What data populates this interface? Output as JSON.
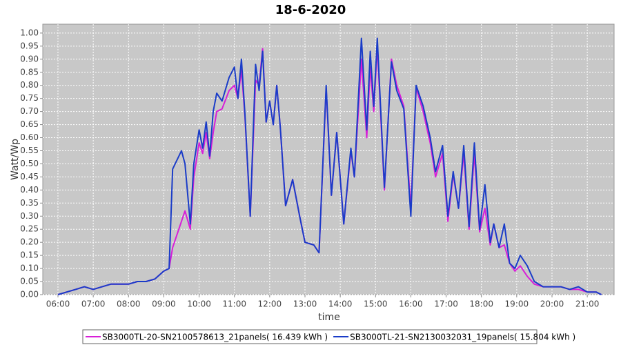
{
  "chart_data": {
    "type": "line",
    "title": "18-6-2020",
    "x_label": "time",
    "y_label": "Watt/Wp",
    "x": [
      6.0,
      6.25,
      6.5,
      6.75,
      7.0,
      7.25,
      7.5,
      7.75,
      8.0,
      8.25,
      8.5,
      8.75,
      9.0,
      9.15,
      9.25,
      9.5,
      9.6,
      9.75,
      9.85,
      10.0,
      10.1,
      10.2,
      10.3,
      10.4,
      10.5,
      10.65,
      10.85,
      11.0,
      11.1,
      11.2,
      11.3,
      11.45,
      11.6,
      11.7,
      11.8,
      11.9,
      12.0,
      12.1,
      12.2,
      12.3,
      12.45,
      12.65,
      12.85,
      13.0,
      13.25,
      13.4,
      13.6,
      13.75,
      13.9,
      14.1,
      14.3,
      14.4,
      14.6,
      14.75,
      14.85,
      14.95,
      15.05,
      15.25,
      15.45,
      15.6,
      15.8,
      16.0,
      16.15,
      16.35,
      16.55,
      16.7,
      16.9,
      17.05,
      17.2,
      17.35,
      17.5,
      17.65,
      17.8,
      17.95,
      18.1,
      18.25,
      18.35,
      18.5,
      18.65,
      18.8,
      18.95,
      19.1,
      19.3,
      19.5,
      19.75,
      20.0,
      20.25,
      20.5,
      20.75,
      21.0,
      21.25,
      21.4
    ],
    "series": [
      {
        "name": "SB3000TL-20-SN2100578613_21panels( 16.439 kWh )",
        "color": "#d81ed8",
        "values": [
          0.0,
          0.01,
          0.02,
          0.03,
          0.02,
          0.03,
          0.04,
          0.04,
          0.04,
          0.05,
          0.05,
          0.06,
          0.09,
          0.1,
          0.18,
          0.28,
          0.32,
          0.25,
          0.45,
          0.58,
          0.54,
          0.62,
          0.52,
          0.62,
          0.7,
          0.71,
          0.78,
          0.8,
          0.75,
          0.86,
          0.68,
          0.3,
          0.82,
          0.8,
          0.94,
          0.66,
          0.74,
          0.65,
          0.8,
          0.64,
          0.34,
          0.44,
          0.3,
          0.2,
          0.19,
          0.16,
          0.79,
          0.38,
          0.62,
          0.27,
          0.55,
          0.45,
          0.9,
          0.6,
          0.87,
          0.7,
          0.95,
          0.4,
          0.9,
          0.8,
          0.72,
          0.33,
          0.79,
          0.7,
          0.58,
          0.45,
          0.54,
          0.28,
          0.46,
          0.33,
          0.54,
          0.25,
          0.54,
          0.24,
          0.33,
          0.19,
          0.27,
          0.18,
          0.19,
          0.12,
          0.09,
          0.11,
          0.07,
          0.04,
          0.03,
          0.03,
          0.03,
          0.02,
          0.02,
          0.01,
          0.01,
          0.0
        ]
      },
      {
        "name": "SB3000TL-21-SN2130032031_19panels( 15.804 kWh )",
        "color": "#1a3cc8",
        "values": [
          0.0,
          0.01,
          0.02,
          0.03,
          0.02,
          0.03,
          0.04,
          0.04,
          0.04,
          0.05,
          0.05,
          0.06,
          0.09,
          0.1,
          0.48,
          0.55,
          0.5,
          0.27,
          0.5,
          0.63,
          0.56,
          0.66,
          0.53,
          0.7,
          0.77,
          0.74,
          0.83,
          0.87,
          0.75,
          0.9,
          0.69,
          0.3,
          0.88,
          0.78,
          0.93,
          0.66,
          0.74,
          0.65,
          0.8,
          0.64,
          0.34,
          0.44,
          0.3,
          0.2,
          0.19,
          0.16,
          0.8,
          0.38,
          0.62,
          0.27,
          0.56,
          0.45,
          0.98,
          0.63,
          0.93,
          0.72,
          0.98,
          0.41,
          0.89,
          0.78,
          0.71,
          0.3,
          0.8,
          0.72,
          0.6,
          0.47,
          0.57,
          0.3,
          0.47,
          0.33,
          0.57,
          0.26,
          0.58,
          0.25,
          0.42,
          0.2,
          0.27,
          0.18,
          0.27,
          0.12,
          0.1,
          0.15,
          0.11,
          0.05,
          0.03,
          0.03,
          0.03,
          0.02,
          0.03,
          0.01,
          0.01,
          0.0
        ]
      }
    ],
    "xlim": [
      5.57,
      21.76
    ],
    "xticks": [
      {
        "value": 6,
        "label": "06:00"
      },
      {
        "value": 7,
        "label": "07:00"
      },
      {
        "value": 8,
        "label": "08:00"
      },
      {
        "value": 9,
        "label": "09:00"
      },
      {
        "value": 10,
        "label": "10:00"
      },
      {
        "value": 11,
        "label": "11:00"
      },
      {
        "value": 12,
        "label": "12:00"
      },
      {
        "value": 13,
        "label": "13:00"
      },
      {
        "value": 14,
        "label": "14:00"
      },
      {
        "value": 15,
        "label": "15:00"
      },
      {
        "value": 16,
        "label": "16:00"
      },
      {
        "value": 17,
        "label": "17:00"
      },
      {
        "value": 18,
        "label": "18:00"
      },
      {
        "value": 19,
        "label": "19:00"
      },
      {
        "value": 20,
        "label": "20:00"
      },
      {
        "value": 21,
        "label": "21:00"
      }
    ],
    "ylim": [
      0,
      1.034
    ],
    "yticks": [
      {
        "value": 0,
        "label": "0.00"
      },
      0.05,
      {
        "value": 0.1,
        "label": "0.10"
      },
      0.15,
      {
        "value": 0.2,
        "label": "0.20"
      },
      0.25,
      {
        "value": 0.3,
        "label": "0.30"
      },
      0.35,
      {
        "value": 0.4,
        "label": "0.40"
      },
      0.45,
      {
        "value": 0.5,
        "label": "0.50"
      },
      0.55,
      {
        "value": 0.6,
        "label": "0.60"
      },
      0.65,
      {
        "value": 0.7,
        "label": "0.70"
      },
      0.75,
      {
        "value": 0.8,
        "label": "0.80"
      },
      0.85,
      {
        "value": 0.9,
        "label": "0.90"
      },
      0.95,
      {
        "value": 1,
        "label": "1.00"
      }
    ],
    "grid": true,
    "legend": "bottom"
  }
}
